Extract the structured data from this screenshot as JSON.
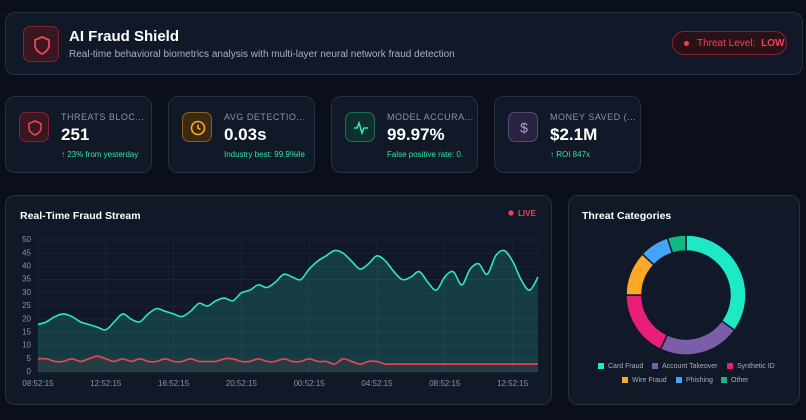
{
  "header": {
    "title": "AI Fraud Shield",
    "subtitle": "Real-time behavioral biometrics analysis with multi-layer neural network fraud detection",
    "badge_label": "Threat Level:",
    "badge_value": "LOW"
  },
  "stats": [
    {
      "label": "THREATS BLOC...",
      "value": "251",
      "sub": "↑ 23% from yesterday"
    },
    {
      "label": "AVG DETECTIO...",
      "value": "0.03s",
      "sub": "Industry best: 99.9%ile"
    },
    {
      "label": "MODEL ACCURA...",
      "value": "99.97%",
      "sub": "False positive rate: 0."
    },
    {
      "label": "MONEY SAVED (...",
      "value": "$2.1M",
      "sub": "↑ ROI 847x"
    }
  ],
  "chart_data": [
    {
      "type": "line",
      "title": "Real-Time Fraud Stream",
      "live_label": "LIVE",
      "categories": [
        "08:52:15",
        null,
        null,
        null,
        null,
        null,
        null,
        null,
        "12:52:15",
        null,
        null,
        null,
        null,
        null,
        null,
        null,
        "16:52:15",
        null,
        null,
        null,
        null,
        null,
        null,
        null,
        "20:52:15",
        null,
        null,
        null,
        null,
        null,
        null,
        null,
        "00:52:15",
        null,
        null,
        null,
        null,
        null,
        null,
        null,
        "04:52:15",
        null,
        null,
        null,
        null,
        null,
        null,
        null,
        "08:52:15",
        null,
        null,
        null,
        null,
        null,
        null,
        null,
        "12:52:15",
        null,
        null,
        null
      ],
      "series": [
        {
          "color": "#2ee6c4",
          "values": [
            18,
            19,
            21,
            22,
            21,
            19,
            18,
            17,
            16,
            19,
            22,
            20,
            19,
            22,
            24,
            23,
            22,
            21,
            23,
            26,
            25,
            27,
            28,
            27,
            30,
            31,
            33,
            32,
            34,
            37,
            36,
            35,
            39,
            42,
            44,
            46,
            45,
            42,
            39,
            41,
            44,
            42,
            38,
            35,
            36,
            38,
            34,
            31,
            36,
            38,
            33,
            39,
            41,
            37,
            44,
            46,
            42,
            35,
            31,
            36
          ]
        },
        {
          "color": "#ef4456",
          "values": [
            5,
            5,
            4,
            4,
            5,
            4,
            5,
            6,
            5,
            4,
            5,
            4,
            5,
            4,
            4,
            5,
            4,
            4,
            5,
            4,
            4,
            4,
            5,
            5,
            4,
            4,
            5,
            4,
            4,
            5,
            4,
            4,
            5,
            4,
            4,
            3,
            5,
            4,
            3,
            4,
            4,
            3,
            3,
            3,
            3,
            3,
            3,
            3,
            3,
            3,
            3,
            3,
            3,
            3,
            3,
            3,
            3,
            3,
            3,
            3
          ]
        }
      ],
      "ylim": [
        0,
        50
      ],
      "yticks": [
        0,
        5,
        10,
        15,
        20,
        25,
        30,
        35,
        40,
        45,
        50
      ],
      "grid": true
    },
    {
      "type": "donut",
      "title": "Threat Categories",
      "categories": [
        "Card Fraud",
        "Account Takeover",
        "Synthetic ID",
        "Wire Fraud",
        "Phishing",
        "Other"
      ],
      "values": [
        35,
        22,
        18,
        12,
        8,
        5
      ],
      "colors": [
        "#1de9c6",
        "#7b5ea7",
        "#e91e78",
        "#ffa726",
        "#42a5f5",
        "#10b981"
      ]
    }
  ]
}
